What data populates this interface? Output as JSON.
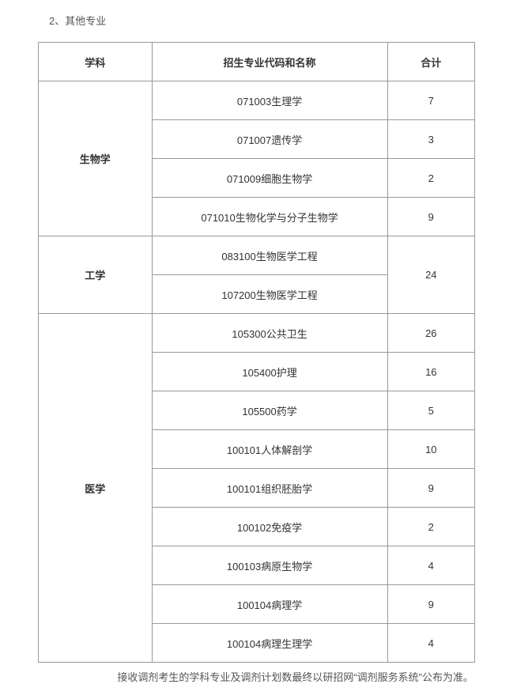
{
  "section_title": "2、其他专业",
  "headers": {
    "discipline": "学科",
    "major": "招生专业代码和名称",
    "total": "合计"
  },
  "groups": [
    {
      "discipline": "生物学",
      "rows": [
        {
          "major": "071003生理学",
          "total": "7",
          "merged_total": false
        },
        {
          "major": "071007遗传学",
          "total": "3",
          "merged_total": false
        },
        {
          "major": "071009细胞生物学",
          "total": "2",
          "merged_total": false
        },
        {
          "major": "071010生物化学与分子生物学",
          "total": "9",
          "merged_total": false
        }
      ]
    },
    {
      "discipline": "工学",
      "rows": [
        {
          "major": "083100生物医学工程",
          "total": "24",
          "merged_total": true,
          "total_span": 2
        },
        {
          "major": "107200生物医学工程",
          "total": null,
          "merged_total": false
        }
      ]
    },
    {
      "discipline": "医学",
      "rows": [
        {
          "major": "105300公共卫生",
          "total": "26",
          "merged_total": false
        },
        {
          "major": "105400护理",
          "total": "16",
          "merged_total": false
        },
        {
          "major": "105500药学",
          "total": "5",
          "merged_total": false
        },
        {
          "major": "100101人体解剖学",
          "total": "10",
          "merged_total": false
        },
        {
          "major": "100101组织胚胎学",
          "total": "9",
          "merged_total": false
        },
        {
          "major": "100102免疫学",
          "total": "2",
          "merged_total": false
        },
        {
          "major": "100103病原生物学",
          "total": "4",
          "merged_total": false
        },
        {
          "major": "100104病理学",
          "total": "9",
          "merged_total": false
        },
        {
          "major": "100104病理生理学",
          "total": "4",
          "merged_total": false
        }
      ]
    }
  ],
  "footer_note": "接收调剂考生的学科专业及调剂计划数最终以研招网“调剂服务系统”公布为准。"
}
